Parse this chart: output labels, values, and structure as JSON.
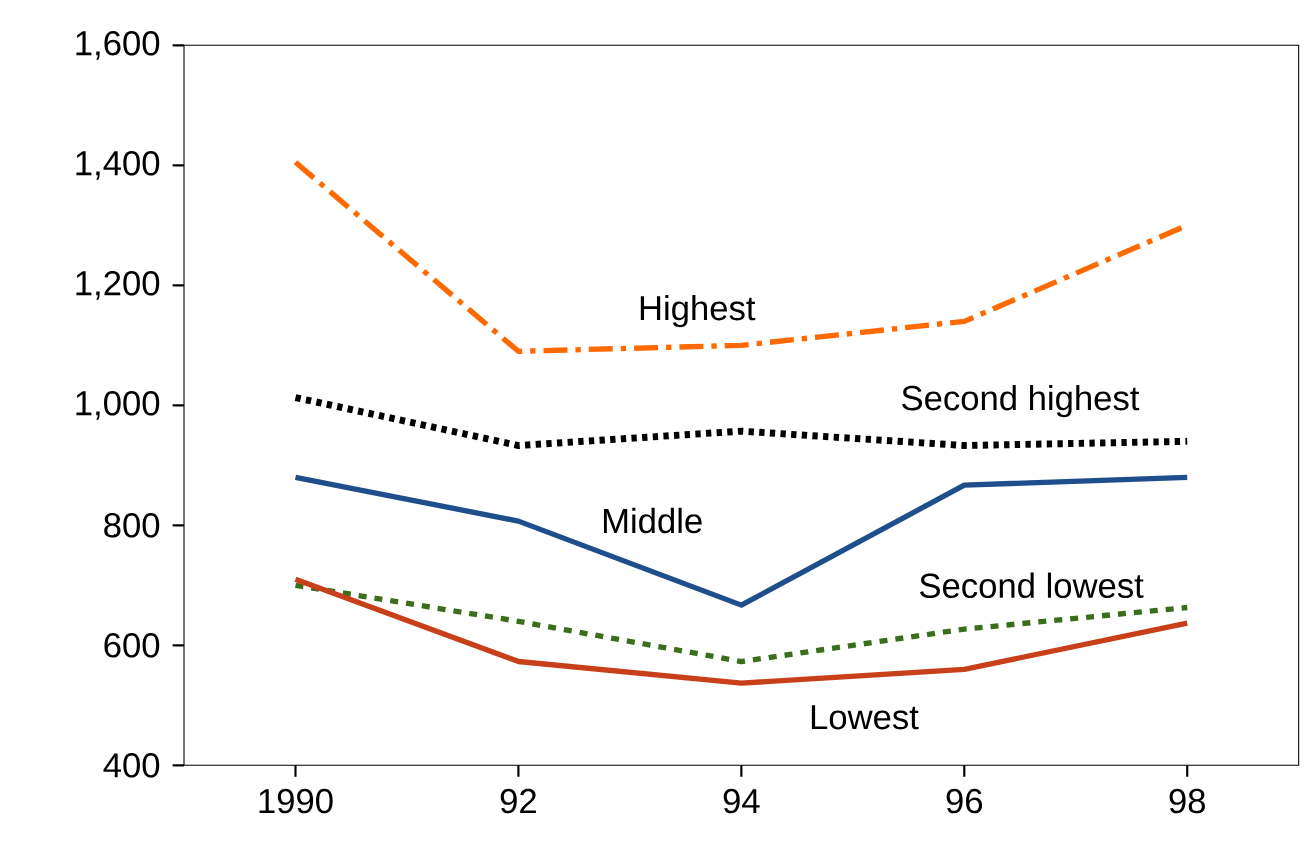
{
  "chart_data": {
    "type": "line",
    "x": [
      1990,
      1992,
      1994,
      1996,
      1998
    ],
    "series": [
      {
        "name": "Highest",
        "color": "#ff6a00",
        "line_style": "dashdot",
        "values": [
          1405,
          1090,
          1100,
          1140,
          1300
        ]
      },
      {
        "name": "Second highest",
        "color": "#000000",
        "line_style": "dotted",
        "values": [
          1013,
          933,
          957,
          933,
          940
        ]
      },
      {
        "name": "Middle",
        "color": "#1f4e8c",
        "line_style": "solid",
        "values": [
          880,
          807,
          667,
          867,
          880
        ]
      },
      {
        "name": "Second lowest",
        "color": "#3a6e1a",
        "line_style": "dashed",
        "values": [
          700,
          640,
          573,
          627,
          663
        ]
      },
      {
        "name": "Lowest",
        "color": "#c8401a",
        "line_style": "solid",
        "values": [
          710,
          573,
          537,
          560,
          637
        ]
      }
    ],
    "xlim": [
      1989,
      1999
    ],
    "ylim": [
      400,
      1600
    ],
    "xticks": [
      1990,
      {
        "value": 1992,
        "label": "92"
      },
      {
        "value": 1994,
        "label": "94"
      },
      {
        "value": 1996,
        "label": "96"
      },
      {
        "value": 1998,
        "label": "98"
      }
    ],
    "yticks": [
      400,
      600,
      800,
      {
        "value": 1000,
        "label": "1,000"
      },
      {
        "value": 1200,
        "label": "1,200"
      },
      {
        "value": 1400,
        "label": "1,400"
      },
      {
        "value": 1600,
        "label": "1,600"
      }
    ],
    "grid": false,
    "legend": false
  }
}
